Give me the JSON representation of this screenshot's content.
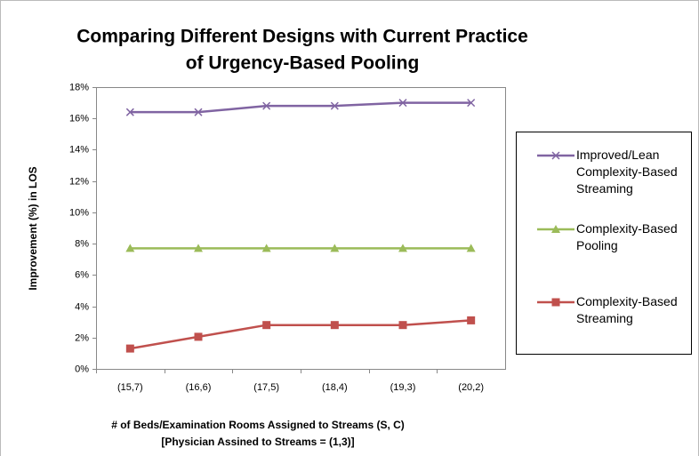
{
  "chart_data": {
    "type": "line",
    "title": [
      "Comparing Different Designs with Current Practice",
      "of Urgency-Based Pooling"
    ],
    "x_label": [
      "# of Beds/Examination Rooms Assigned to Streams (S, C)",
      "[Physician Assined to Streams = (1,3)]"
    ],
    "y_label": "Improvement (%) in LOS",
    "categories": [
      "(15,7)",
      "(16,6)",
      "(17,5)",
      "(18,4)",
      "(19,3)",
      "(20,2)"
    ],
    "series": [
      {
        "name": "Improved/Lean Complexity-Based Streaming",
        "color": "#8064a2",
        "marker": "x",
        "values": [
          16.4,
          16.4,
          16.8,
          16.8,
          17.0,
          17.0
        ]
      },
      {
        "name": "Complexity-Based Pooling",
        "color": "#9bbb59",
        "marker": "triangle",
        "values": [
          7.7,
          7.7,
          7.7,
          7.7,
          7.7,
          7.7
        ]
      },
      {
        "name": "Complexity-Based Streaming",
        "color": "#c0504d",
        "marker": "square",
        "values": [
          1.3,
          2.05,
          2.8,
          2.8,
          2.8,
          3.1
        ]
      }
    ],
    "ylim": [
      0,
      18
    ],
    "yticks": [
      {
        "value": 0,
        "label": "0%"
      },
      {
        "value": 2,
        "label": "2%"
      },
      {
        "value": 4,
        "label": "4%"
      },
      {
        "value": 6,
        "label": "6%"
      },
      {
        "value": 8,
        "label": "8%"
      },
      {
        "value": 10,
        "label": "10%"
      },
      {
        "value": 12,
        "label": "12%"
      },
      {
        "value": 14,
        "label": "14%"
      },
      {
        "value": 16,
        "label": "16%"
      },
      {
        "value": 18,
        "label": "18%"
      }
    ],
    "legend": "right"
  }
}
